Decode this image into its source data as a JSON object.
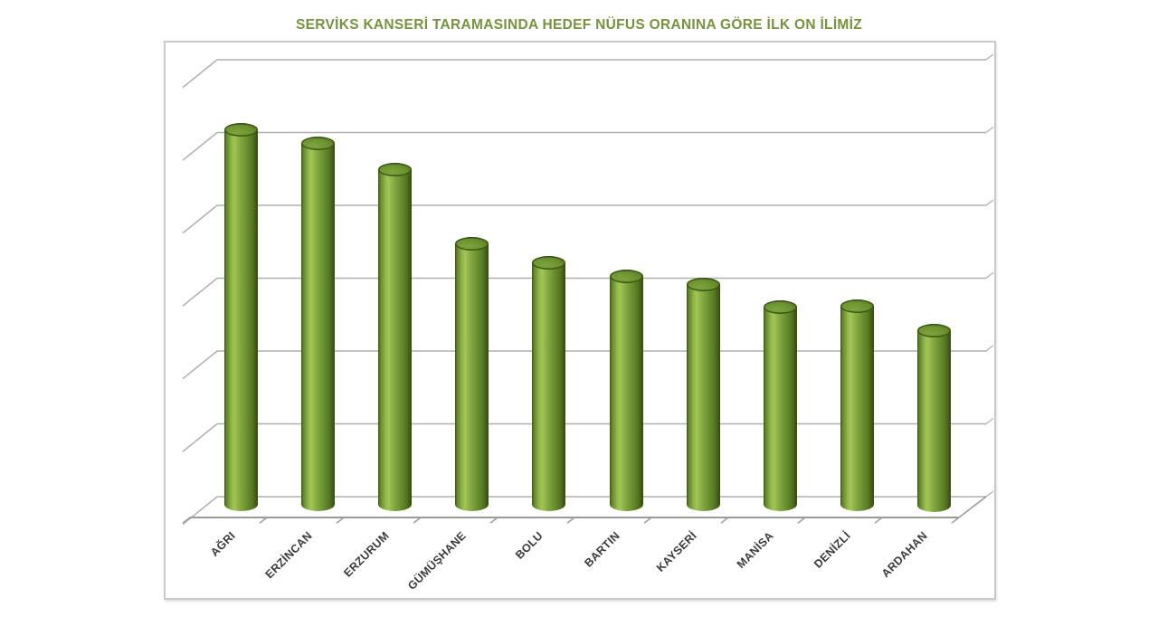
{
  "chart_data": {
    "type": "bar",
    "subtype": "3d-cylinder",
    "title": "SERVİKS KANSERİ TARAMASINDA HEDEF NÜFUS ORANINA GÖRE İLK ON İLİMİZ",
    "categories": [
      "AĞRI",
      "ERZİNCAN",
      "ERZURUM",
      "GÜMÜŞHANE",
      "BOLU",
      "BARTIN",
      "KAYSERİ",
      "MANİSA",
      "DENİZLİ",
      "ARDAHAN"
    ],
    "values": [
      86.3,
      83.2,
      77.2,
      60.2,
      55.8,
      52.8,
      51.0,
      45.8,
      46.0,
      40.5
    ],
    "values_note": "Value axis has no numeric tick labels; values estimated as percent of axis maximum (6 equal unlabeled gridline intervals).",
    "xlabel": "",
    "ylabel": "",
    "ylim": [
      0,
      100
    ],
    "y_tick_labels": [],
    "gridline_intervals": 6,
    "grid": "horizontal-backwall",
    "legend": "none",
    "colors": {
      "bar_main": "#7ba339",
      "bar_highlight": "#a4c458",
      "bar_dark": "#3c5414",
      "bar_top": "#6b9230",
      "title_text": "#77933c",
      "axis_line": "#9a9a9a",
      "gridline": "#b0b0b0",
      "category_label": "#3a3a3a",
      "frame_border": "#c9c9c9",
      "background": "#ffffff"
    }
  }
}
